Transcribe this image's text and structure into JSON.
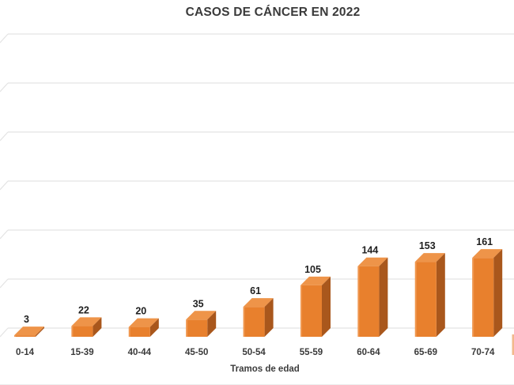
{
  "chart_data": {
    "type": "bar",
    "style": "3d-column",
    "title": "CASOS DE CÁNCER EN 2022",
    "xlabel": "Tramos de edad",
    "ylabel": "",
    "categories": [
      "0-14",
      "15-39",
      "40-44",
      "45-50",
      "50-54",
      "55-59",
      "60-64",
      "65-69",
      "70-74"
    ],
    "values": [
      3,
      22,
      20,
      35,
      61,
      105,
      144,
      153,
      161
    ],
    "data_labels_shown": true,
    "ylim": [
      0,
      600
    ],
    "y_tick_labels_visible": false,
    "gridlines": {
      "horizontal": true,
      "count": 7,
      "value_interval": 100
    },
    "legend": "none",
    "colors": {
      "bar_front": "#E8802D",
      "bar_top": "#EE9449",
      "bar_side": "#A9571C",
      "bar_edge_highlight": "#F5A96B",
      "gridline": "#E3E3E3",
      "title_text": "#3A3A3A",
      "value_label_text": "#1F1F1F",
      "category_label_text": "#3A3A3A",
      "background": "#FFFFFF"
    }
  }
}
